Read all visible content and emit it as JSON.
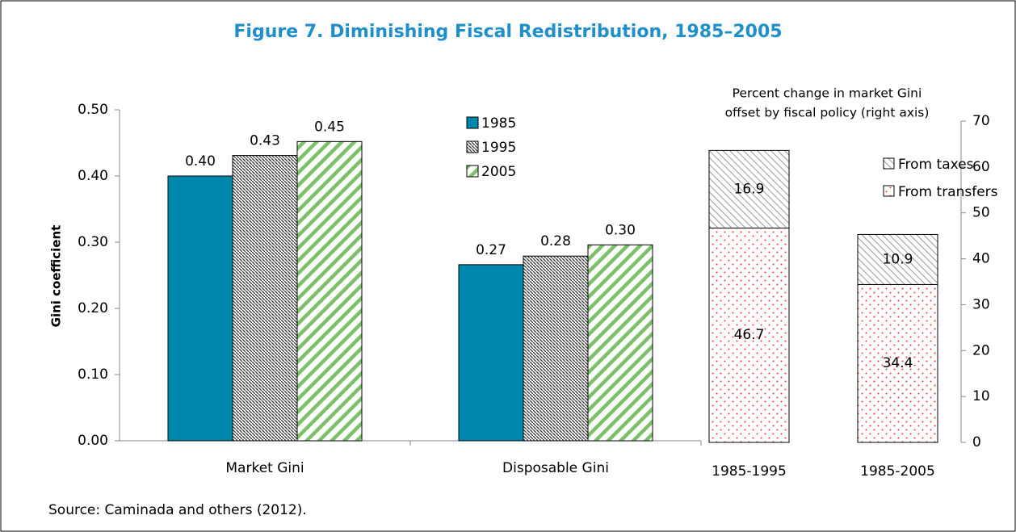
{
  "chart_data": [
    {
      "type": "bar",
      "title": "Figure 7. Diminishing Fiscal Redistribution, 1985–2005",
      "ylabel": "Gini coefficient",
      "source": "Source: Caminada and others (2012).",
      "categories": [
        "Market Gini",
        "Disposable Gini"
      ],
      "series": [
        {
          "name": "1985",
          "color": "#0087ad",
          "pattern": "solid",
          "values": [
            0.4,
            0.266
          ],
          "value_labels": [
            "0.40",
            "0.27"
          ]
        },
        {
          "name": "1995",
          "color": "#333333",
          "pattern": "hatch-dense",
          "values": [
            0.431,
            0.279
          ],
          "value_labels": [
            "0.43",
            "0.28"
          ]
        },
        {
          "name": "2005",
          "color": "#7cbf6a",
          "pattern": "stripe",
          "values": [
            0.452,
            0.296
          ],
          "value_labels": [
            "0.45",
            "0.30"
          ]
        }
      ],
      "ylim": [
        0,
        0.5
      ],
      "yticks": [
        {
          "value": 0,
          "label": "0.00"
        },
        {
          "value": 0.1,
          "label": "0.10"
        },
        {
          "value": 0.2,
          "label": "0.20"
        },
        {
          "value": 0.3,
          "label": "0.30"
        },
        {
          "value": 0.4,
          "label": "0.40"
        },
        {
          "value": 0.5,
          "label": "0.50"
        }
      ]
    },
    {
      "type": "stacked_bar",
      "annotation": [
        "Percent change in market Gini",
        "offset by fiscal policy  (right axis)"
      ],
      "categories": [
        "1985-1995",
        "1985-2005"
      ],
      "series": [
        {
          "name": "From transfers",
          "color": "#ff3333",
          "pattern": "dots",
          "values": [
            46.7,
            34.4
          ]
        },
        {
          "name": "From taxes",
          "color": "#999999",
          "pattern": "hatch-light",
          "values": [
            16.9,
            10.9
          ]
        }
      ],
      "ylim": [
        0,
        70
      ],
      "yticks": [
        0,
        10,
        20,
        30,
        40,
        50,
        60,
        70
      ]
    }
  ]
}
